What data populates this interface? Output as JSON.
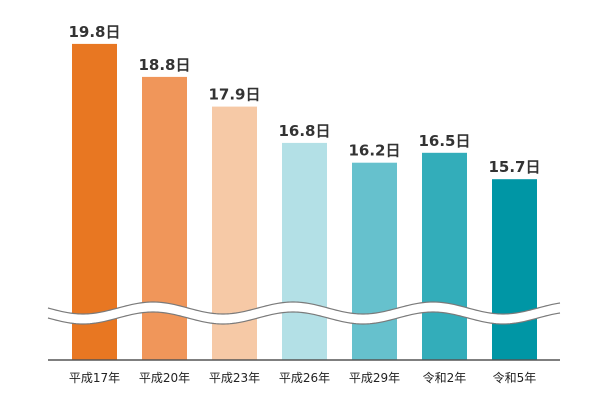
{
  "chart_data": {
    "type": "bar",
    "title": "",
    "xlabel": "",
    "ylabel": "",
    "axis_break": true,
    "unit": "日",
    "categories": [
      "平成17年",
      "平成20年",
      "平成23年",
      "平成26年",
      "平成29年",
      "令和2年",
      "令和5年"
    ],
    "values": [
      19.8,
      18.8,
      17.9,
      16.8,
      16.2,
      16.5,
      15.7
    ],
    "value_labels": [
      "19.8日",
      "18.8日",
      "17.9日",
      "16.8日",
      "16.2日",
      "16.5日",
      "15.7日"
    ],
    "colors": [
      "#E87722",
      "#F0965A",
      "#F6C9A6",
      "#B3E0E6",
      "#66C1CD",
      "#33ADBA",
      "#0096A5"
    ],
    "grid": false,
    "legend": "none"
  }
}
